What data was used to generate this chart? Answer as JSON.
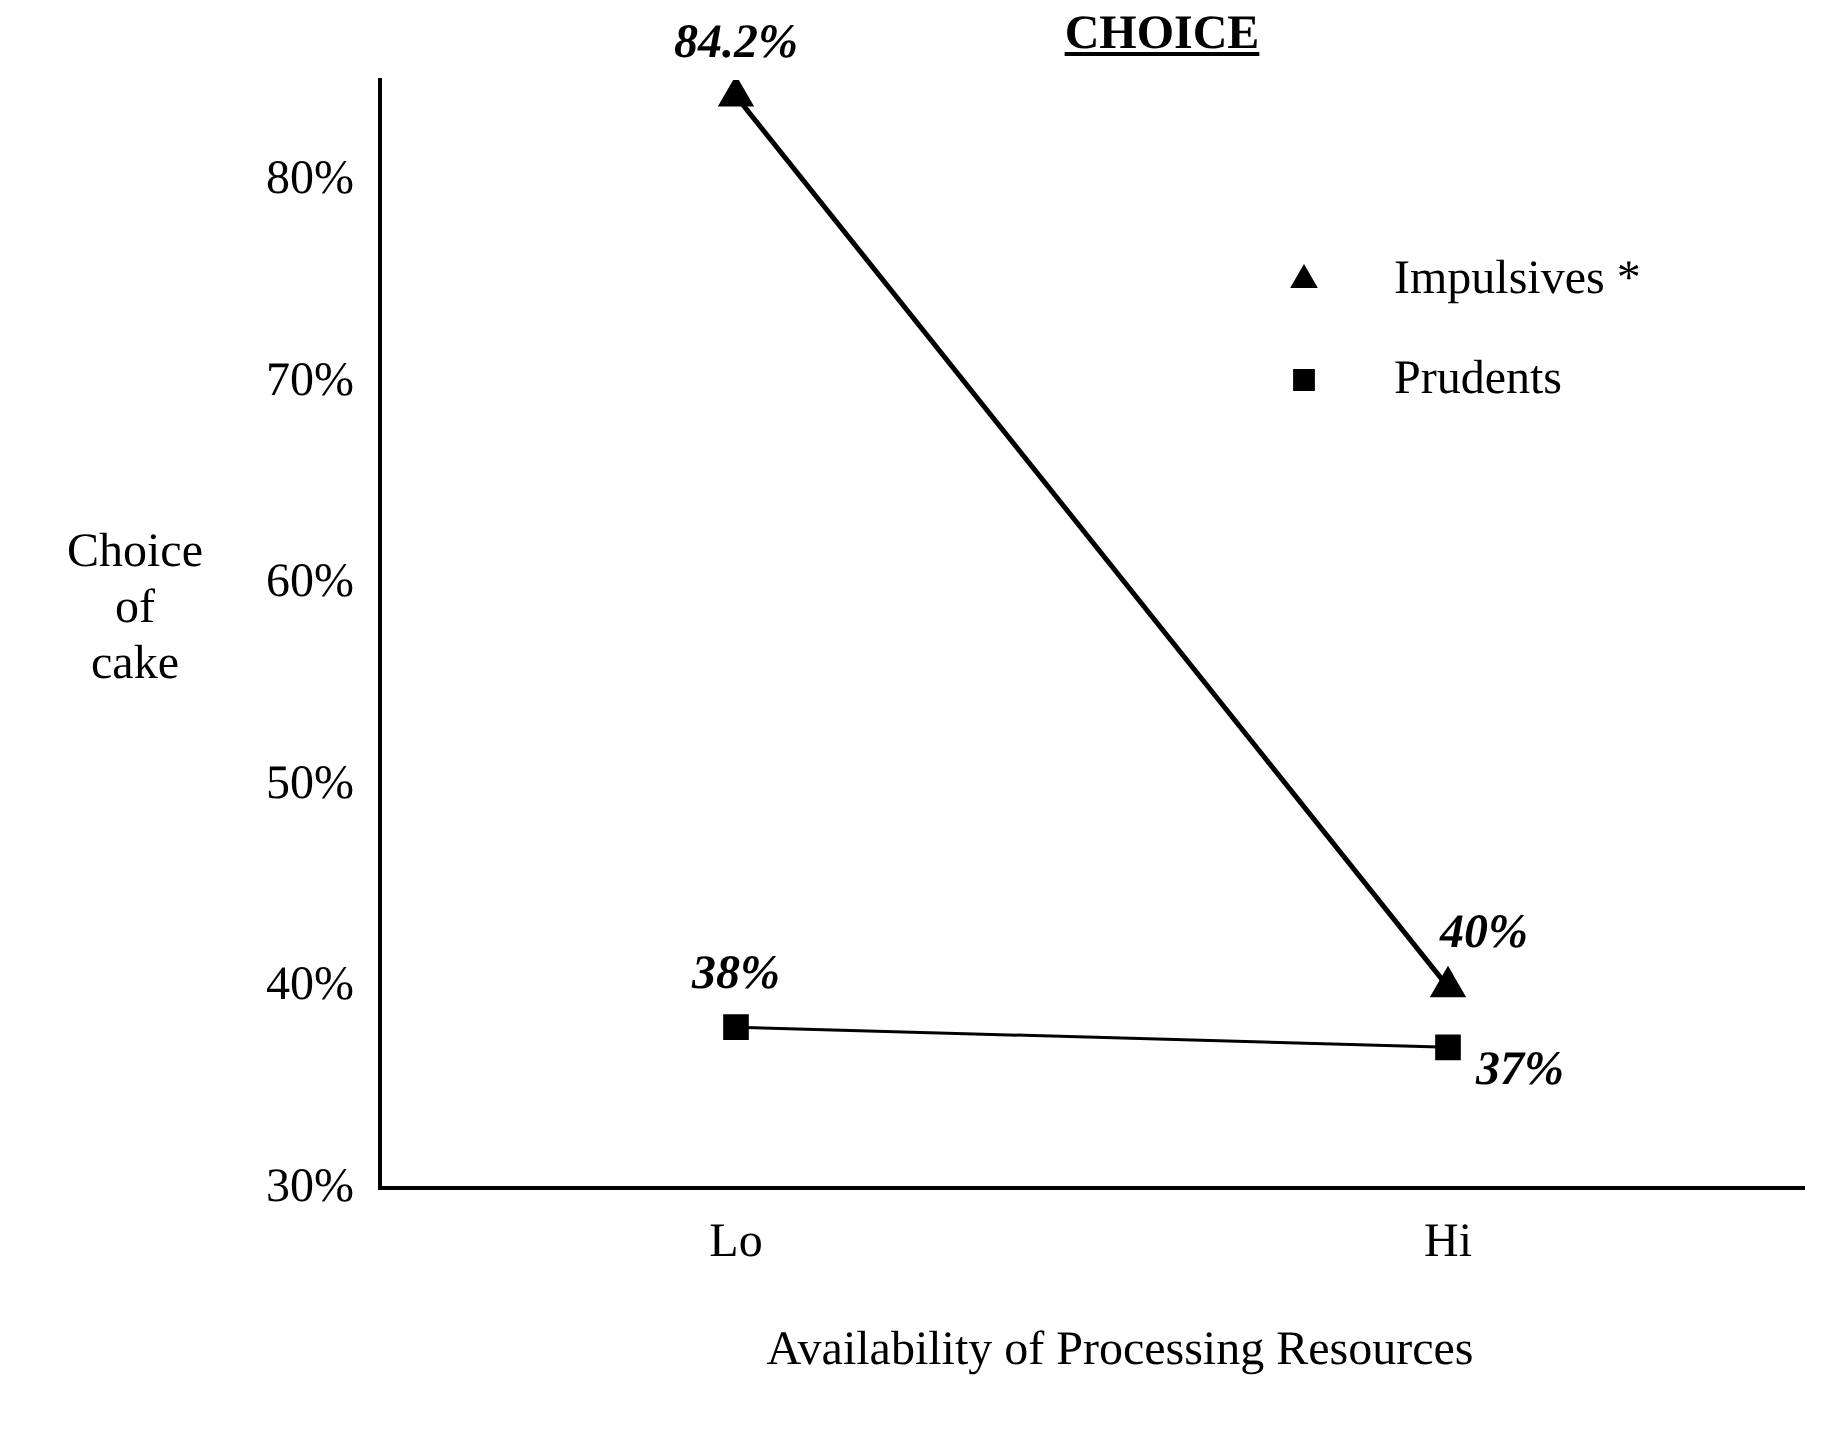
{
  "chart_data": {
    "type": "line",
    "title": "CHOICE",
    "xlabel": "Availability of Processing Resources",
    "ylabel": "Choice of cake",
    "categories": [
      "Lo",
      "Hi"
    ],
    "series": [
      {
        "name": "Impulsives *",
        "color": "#000000",
        "marker": "triangle",
        "values": [
          84.2,
          40
        ],
        "value_labels": [
          "84.2%",
          "40%"
        ]
      },
      {
        "name": "Prudents",
        "color": "#000000",
        "marker": "square",
        "values": [
          38,
          37
        ],
        "value_labels": [
          "38%",
          "37%"
        ]
      }
    ],
    "ylim": [
      30,
      85
    ],
    "yticks": [
      {
        "value": 30,
        "label": "30%"
      },
      {
        "value": 40,
        "label": "40%"
      },
      {
        "value": 50,
        "label": "50%"
      },
      {
        "value": 60,
        "label": "60%"
      },
      {
        "value": 70,
        "label": "70%"
      },
      {
        "value": 80,
        "label": "80%"
      }
    ],
    "grid": false,
    "legend": "top right"
  }
}
